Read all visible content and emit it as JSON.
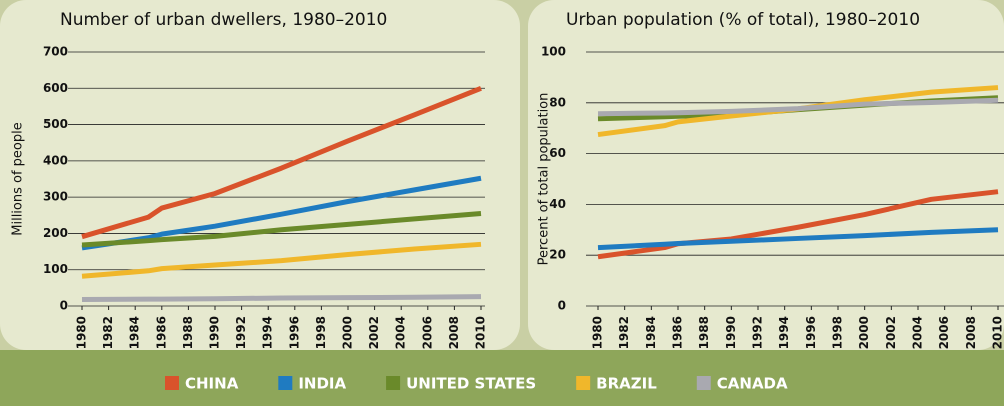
{
  "chart_data": [
    {
      "type": "line",
      "title": "Number of urban dwellers, 1980–2010",
      "y_label": "Millions of people",
      "x": [
        1980,
        1985,
        1986,
        1990,
        1995,
        2000,
        2005,
        2010
      ],
      "xlim": [
        1980,
        2010
      ],
      "xticks": [
        1980,
        1982,
        1984,
        1986,
        1988,
        1990,
        1992,
        1994,
        1996,
        1998,
        2000,
        2002,
        2004,
        2006,
        2008,
        2010
      ],
      "ylim": [
        0,
        700
      ],
      "yticks": [
        0,
        100,
        200,
        300,
        400,
        500,
        600,
        700
      ],
      "grid": true,
      "series": [
        {
          "name": "CHINA",
          "color": "#d9532b",
          "values": [
            191,
            245,
            270,
            310,
            380,
            455,
            527,
            600
          ]
        },
        {
          "name": "INDIA",
          "color": "#1f7bc1",
          "values": [
            160,
            188,
            198,
            220,
            253,
            288,
            320,
            352
          ]
        },
        {
          "name": "UNITED STATES",
          "color": "#6a8a2a",
          "values": [
            168,
            180,
            183,
            192,
            210,
            225,
            240,
            255
          ]
        },
        {
          "name": "BRAZIL",
          "color": "#f0b72b",
          "values": [
            82,
            97,
            103,
            113,
            125,
            142,
            157,
            170
          ]
        },
        {
          "name": "CANADA",
          "color": "#a9a9b0",
          "values": [
            18,
            19,
            19,
            20,
            22,
            23,
            24,
            26
          ]
        }
      ]
    },
    {
      "type": "line",
      "title": "Urban population (% of total), 1980–2010",
      "y_label": "Percent of total population",
      "x": [
        1980,
        1985,
        1986,
        1990,
        1995,
        2000,
        2005,
        2010
      ],
      "xlim": [
        1980,
        2010
      ],
      "xticks": [
        1980,
        1982,
        1984,
        1986,
        1988,
        1990,
        1992,
        1994,
        1996,
        1998,
        2000,
        2002,
        2004,
        2006,
        2008,
        2010
      ],
      "ylim": [
        0,
        100
      ],
      "yticks": [
        0,
        20,
        40,
        60,
        80,
        100
      ],
      "grid": true,
      "series": [
        {
          "name": "CHINA",
          "color": "#d9532b",
          "values": [
            19.4,
            23,
            24.5,
            26.4,
            31,
            36,
            42,
            45
          ]
        },
        {
          "name": "INDIA",
          "color": "#1f7bc1",
          "values": [
            23,
            24.3,
            24.6,
            25.5,
            26.6,
            27.7,
            29,
            30
          ]
        },
        {
          "name": "UNITED STATES",
          "color": "#6a8a2a",
          "values": [
            73.7,
            74.5,
            74.7,
            75.3,
            77.3,
            79.1,
            80.7,
            82
          ]
        },
        {
          "name": "BRAZIL",
          "color": "#f0b72b",
          "values": [
            67.5,
            71,
            72.5,
            74.8,
            77.6,
            81.2,
            84.2,
            86
          ]
        },
        {
          "name": "CANADA",
          "color": "#a9a9b0",
          "values": [
            75.7,
            76,
            76.1,
            76.6,
            77.7,
            79.5,
            80.1,
            81
          ]
        }
      ]
    }
  ]
}
